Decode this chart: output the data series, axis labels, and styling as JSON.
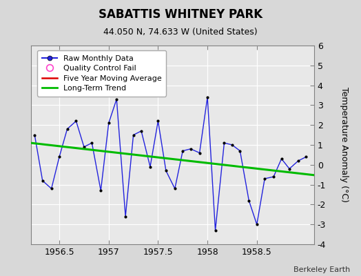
{
  "title": "SABATTIS WHITNEY PARK",
  "subtitle": "44.050 N, 74.633 W (United States)",
  "ylabel": "Temperature Anomaly (°C)",
  "credit": "Berkeley Earth",
  "ylim": [
    -4,
    6
  ],
  "xlim": [
    1956.21,
    1959.08
  ],
  "xticks": [
    1956.5,
    1957.0,
    1957.5,
    1958.0,
    1958.5
  ],
  "xtick_labels": [
    "1956.5",
    "1957",
    "1957.5",
    "1958",
    "1958.5"
  ],
  "yticks": [
    -4,
    -3,
    -2,
    -1,
    0,
    1,
    2,
    3,
    4,
    5,
    6
  ],
  "ytick_labels": [
    "-4",
    "-3",
    "-2",
    "-1",
    "0",
    "1",
    "2",
    "3",
    "4",
    "5",
    "6"
  ],
  "bg_color": "#d8d8d8",
  "plot_bg_color": "#e8e8e8",
  "raw_x": [
    1956.25,
    1956.33,
    1956.42,
    1956.5,
    1956.58,
    1956.67,
    1956.75,
    1956.83,
    1956.92,
    1957.0,
    1957.08,
    1957.17,
    1957.25,
    1957.33,
    1957.42,
    1957.5,
    1957.58,
    1957.67,
    1957.75,
    1957.83,
    1957.92,
    1958.0,
    1958.08,
    1958.17,
    1958.25,
    1958.33,
    1958.42,
    1958.5,
    1958.58,
    1958.67,
    1958.75,
    1958.83,
    1958.92,
    1959.0
  ],
  "raw_y": [
    1.5,
    -0.8,
    -1.2,
    0.4,
    1.8,
    2.2,
    0.9,
    1.1,
    -1.3,
    2.1,
    3.3,
    -2.6,
    1.5,
    1.7,
    -0.1,
    2.2,
    -0.3,
    -1.2,
    0.7,
    0.8,
    0.6,
    3.4,
    -3.3,
    1.1,
    1.0,
    0.7,
    -1.8,
    -3.0,
    -0.7,
    -0.6,
    0.3,
    -0.2,
    0.2,
    0.4
  ],
  "trend_x": [
    1956.21,
    1959.08
  ],
  "trend_y": [
    1.1,
    -0.52
  ],
  "line_color": "#2222dd",
  "marker_color": "#000000",
  "trend_color": "#00bb00",
  "moving_avg_color": "#dd0000",
  "title_fontsize": 12,
  "subtitle_fontsize": 9,
  "tick_fontsize": 9,
  "ylabel_fontsize": 9,
  "legend_fontsize": 8
}
